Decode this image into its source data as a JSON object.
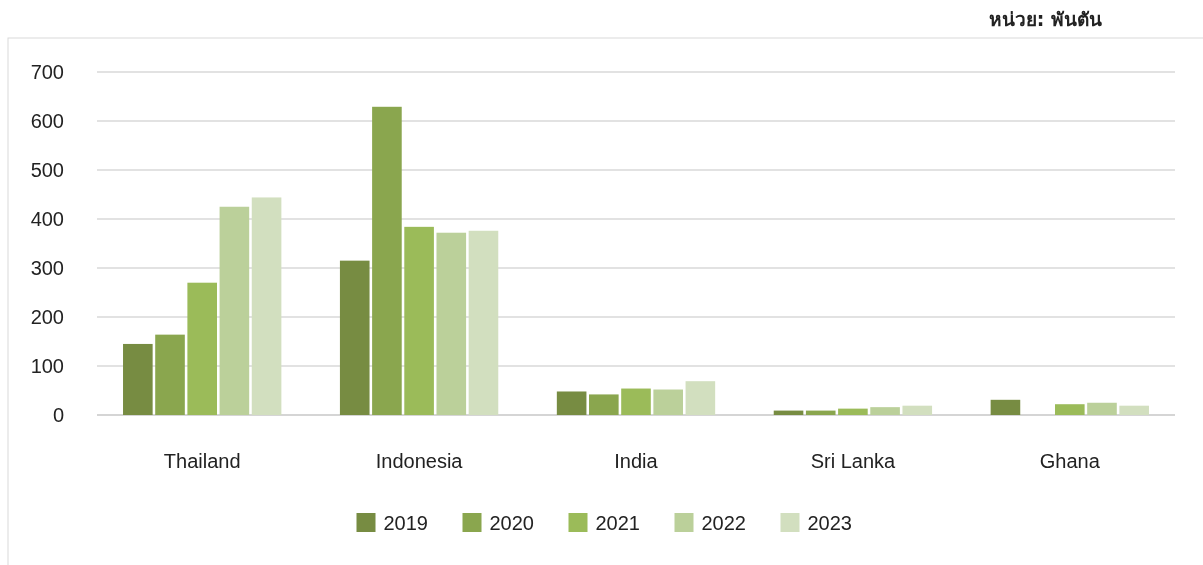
{
  "chart_data": {
    "type": "bar",
    "annotations": [
      "หน่วย: พันตัน"
    ],
    "categories": [
      "Thailand",
      "Indonesia",
      "India",
      "Sri Lanka",
      "Ghana"
    ],
    "series": [
      {
        "name": "2019",
        "color": "#778c42",
        "values": [
          145,
          315,
          48,
          9,
          31
        ]
      },
      {
        "name": "2020",
        "color": "#8aa64e",
        "values": [
          164,
          629,
          42,
          9,
          null
        ]
      },
      {
        "name": "2021",
        "color": "#9bbb59",
        "values": [
          270,
          384,
          54,
          13,
          22
        ]
      },
      {
        "name": "2022",
        "color": "#bbd09a",
        "values": [
          425,
          372,
          52,
          16,
          25
        ]
      },
      {
        "name": "2023",
        "color": "#d2dfbf",
        "values": [
          444,
          376,
          69,
          19,
          19
        ]
      }
    ],
    "ylim": [
      0,
      700
    ],
    "yticks": [
      0,
      100,
      200,
      300,
      400,
      500,
      600,
      700
    ],
    "grid": "y",
    "legend": "bottom"
  }
}
